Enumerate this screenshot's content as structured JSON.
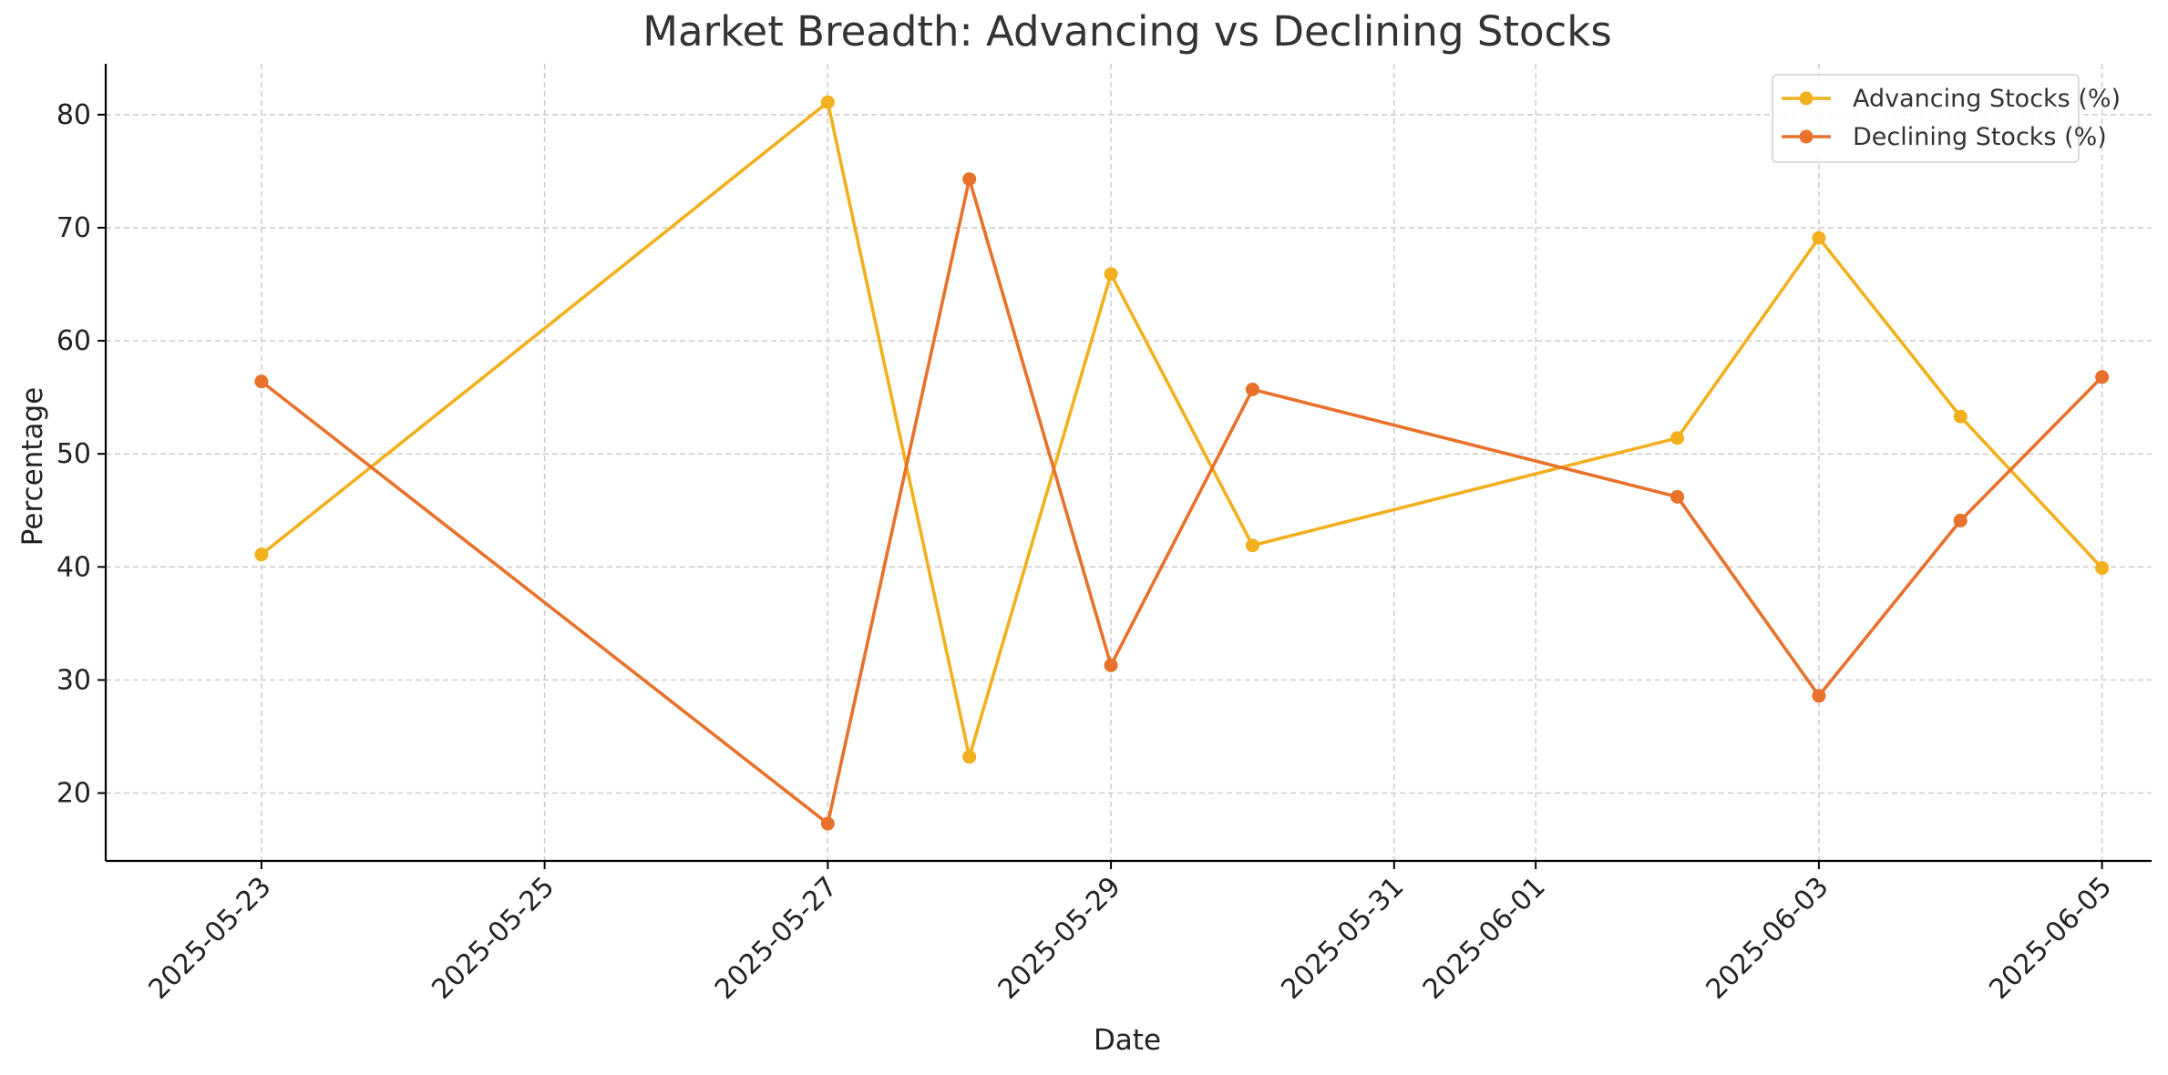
{
  "chart_data": {
    "type": "line",
    "title": "Market Breadth: Advancing vs Declining Stocks",
    "xlabel": "Date",
    "ylabel": "Percentage",
    "x": [
      "2025-05-23",
      "2025-05-27",
      "2025-05-28",
      "2025-05-29",
      "2025-05-30",
      "2025-06-02",
      "2025-06-03",
      "2025-06-04",
      "2025-06-05"
    ],
    "x_ticks": [
      "2025-05-23",
      "2025-05-25",
      "2025-05-27",
      "2025-05-29",
      "2025-05-31",
      "2025-06-01",
      "2025-06-03",
      "2025-06-05"
    ],
    "xlim": [
      "2025-05-22",
      "2025-06-05"
    ],
    "y_ticks": [
      20,
      30,
      40,
      50,
      60,
      70,
      80
    ],
    "ylim": [
      14,
      84.5
    ],
    "grid": true,
    "legend_position": "top-right",
    "series": [
      {
        "name": "Advancing Stocks (%)",
        "color": "#f2b01e",
        "marker": "circle",
        "values": [
          41.1,
          81.1,
          23.2,
          65.9,
          41.9,
          51.4,
          69.1,
          53.3,
          39.9
        ]
      },
      {
        "name": "Declining Stocks (%)",
        "color": "#e8712b",
        "marker": "circle",
        "values": [
          56.4,
          17.3,
          74.3,
          31.3,
          55.7,
          46.2,
          28.6,
          44.1,
          56.8
        ]
      }
    ]
  }
}
